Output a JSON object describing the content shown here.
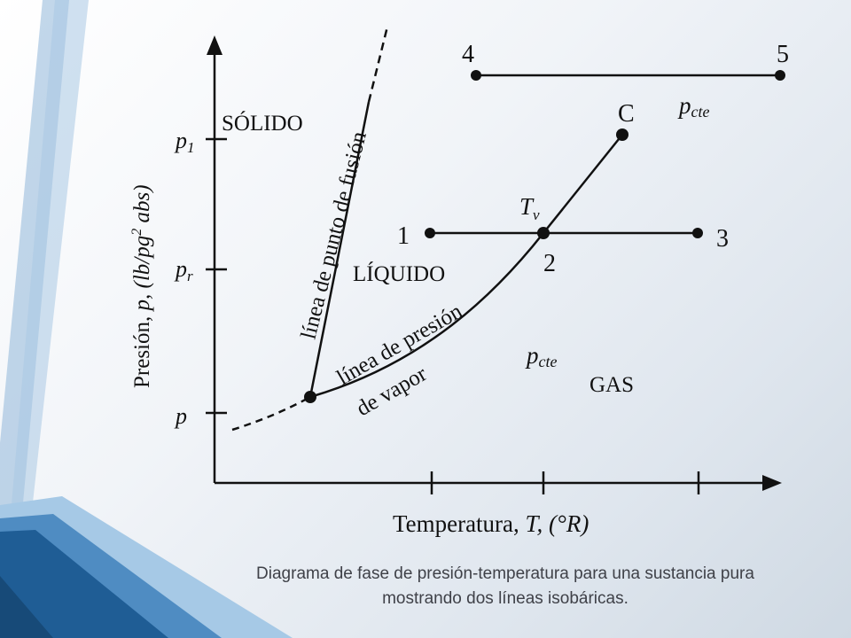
{
  "diagram": {
    "axes": {
      "x_label_plain": "Temperatura, ",
      "x_label_italic": "T, (°R)",
      "y_label_plain": "Presión, ",
      "y_label_italic_1": "p, (lb/pg",
      "y_label_sup": "2",
      "y_label_italic_2": " abs)"
    },
    "y_ticks": [
      {
        "base": "p",
        "sub": "1"
      },
      {
        "base": "p",
        "sub": "r"
      },
      {
        "base": "p",
        "sub": ""
      }
    ],
    "regions": {
      "solid": "SÓLIDO",
      "liquid": "LÍQUIDO",
      "gas": "GAS"
    },
    "curves": {
      "fusion": "línea de punto de fusión",
      "vapor_line1": "línea de presión",
      "vapor_line2": "de vapor"
    },
    "points": {
      "p1": "1",
      "p2": "2",
      "p3": "3",
      "p4": "4",
      "p5": "5",
      "critical": "C",
      "tv_base": "T",
      "tv_sub": "v"
    },
    "isobar_labels": [
      {
        "base": "p",
        "sub": "cte"
      },
      {
        "base": "p",
        "sub": "cte"
      }
    ]
  },
  "caption": {
    "line1": "Diagrama de fase de presión-temperatura para una sustancia pura",
    "line2": "mostrando dos líneas isobáricas."
  }
}
